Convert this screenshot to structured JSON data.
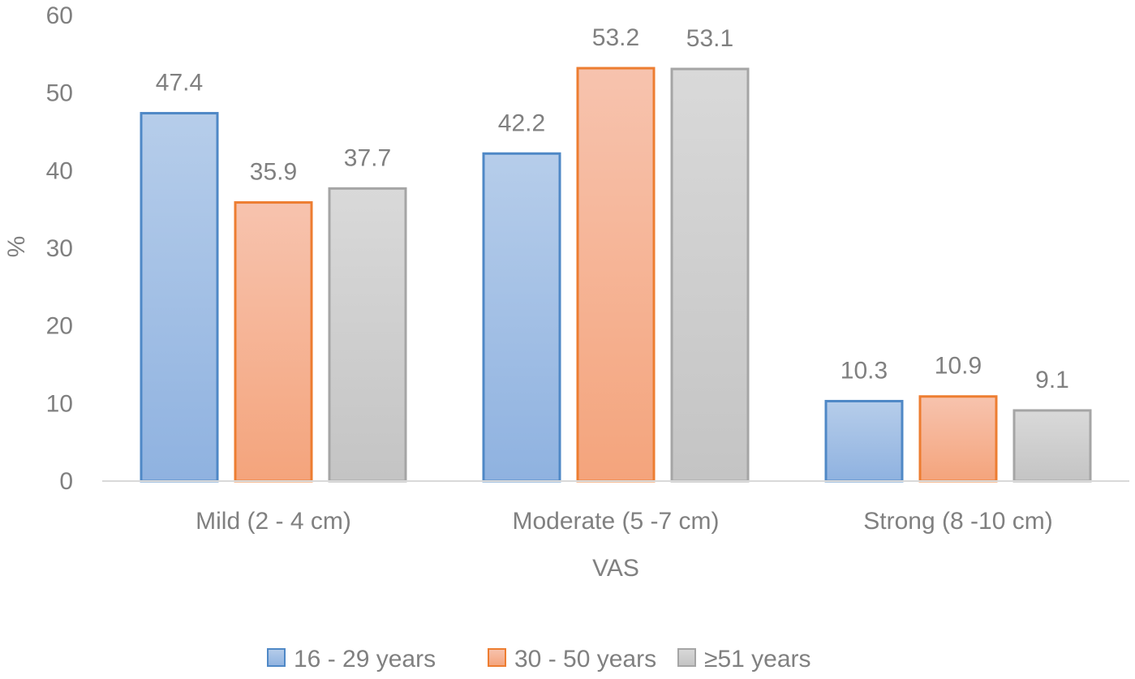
{
  "chart_data": {
    "type": "bar",
    "title": "",
    "xlabel": "VAS",
    "ylabel": "%",
    "ylim": [
      0,
      60
    ],
    "yticks": [
      0,
      10,
      20,
      30,
      40,
      50,
      60
    ],
    "grid": false,
    "legend_position": "bottom",
    "categories": [
      "Mild (2 - 4 cm)",
      "Moderate (5 -7 cm)",
      "Strong (8 -10 cm)"
    ],
    "series": [
      {
        "name": "16 - 29 years",
        "values": [
          47.4,
          42.2,
          10.3
        ],
        "labels": [
          "47.4",
          "42.2",
          "10.3"
        ],
        "fill_top": "#b6cdea",
        "fill_bottom": "#8fb2e0",
        "stroke": "#4f88c6"
      },
      {
        "name": "30 - 50 years",
        "values": [
          35.9,
          53.2,
          10.9
        ],
        "labels": [
          "35.9",
          "53.2",
          "10.9"
        ],
        "fill_top": "#f7c3ae",
        "fill_bottom": "#f4a47c",
        "stroke": "#ed7d31"
      },
      {
        "name": "≥51 years",
        "values": [
          37.7,
          53.1,
          9.1
        ],
        "labels": [
          "37.7",
          "53.1",
          "9.1"
        ],
        "fill_top": "#d9d9d9",
        "fill_bottom": "#c4c4c4",
        "stroke": "#a5a5a5"
      }
    ]
  }
}
